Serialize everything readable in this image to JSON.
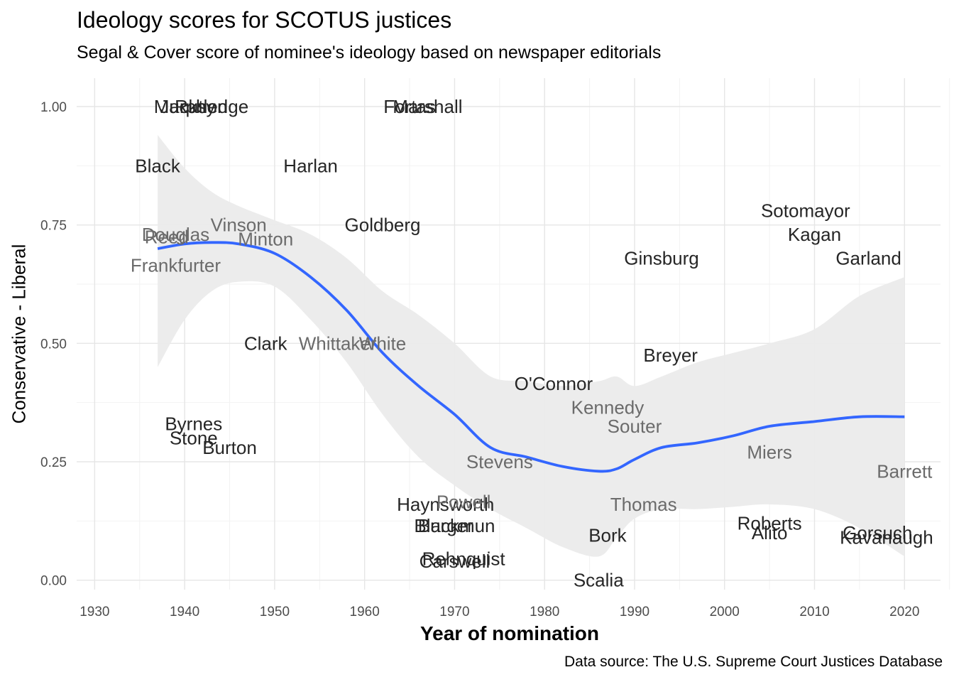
{
  "chart_data": {
    "type": "scatter",
    "title": "Ideology scores for SCOTUS justices",
    "subtitle": "Segal & Cover score of nominee's ideology based on newspaper editorials",
    "caption": "Data source: The U.S. Supreme Court Justices Database",
    "xlabel": "Year of nomination",
    "ylabel": "Conservative - Liberal",
    "xlim": [
      1928,
      2024
    ],
    "ylim": [
      -0.02,
      1.06
    ],
    "x_ticks": [
      1930,
      1940,
      1950,
      1960,
      1970,
      1980,
      1990,
      2000,
      2010,
      2020
    ],
    "y_ticks": [
      0.0,
      0.25,
      0.5,
      0.75,
      1.0
    ],
    "y_tick_labels": [
      "0.00",
      "0.25",
      "0.50",
      "0.75",
      "1.00"
    ],
    "grid": true,
    "points": [
      {
        "name": "Black",
        "x": 1937,
        "y": 0.875,
        "in_band": false
      },
      {
        "name": "Reed",
        "x": 1938,
        "y": 0.725,
        "in_band": true
      },
      {
        "name": "Frankfurter",
        "x": 1939,
        "y": 0.665,
        "in_band": true
      },
      {
        "name": "Douglas",
        "x": 1939,
        "y": 0.73,
        "in_band": true
      },
      {
        "name": "Murphy",
        "x": 1940,
        "y": 1.0,
        "in_band": false
      },
      {
        "name": "Stone",
        "x": 1941,
        "y": 0.3,
        "in_band": false
      },
      {
        "name": "Byrnes",
        "x": 1941,
        "y": 0.33,
        "in_band": false
      },
      {
        "name": "Jackson",
        "x": 1941,
        "y": 1.0,
        "in_band": false
      },
      {
        "name": "Rutledge",
        "x": 1943,
        "y": 1.0,
        "in_band": false
      },
      {
        "name": "Burton",
        "x": 1945,
        "y": 0.28,
        "in_band": false
      },
      {
        "name": "Vinson",
        "x": 1946,
        "y": 0.75,
        "in_band": true
      },
      {
        "name": "Clark",
        "x": 1949,
        "y": 0.5,
        "in_band": false
      },
      {
        "name": "Minton",
        "x": 1949,
        "y": 0.72,
        "in_band": true
      },
      {
        "name": "Harlan",
        "x": 1954,
        "y": 0.875,
        "in_band": false
      },
      {
        "name": "White",
        "x": 1962,
        "y": 0.5,
        "in_band": true
      },
      {
        "name": "Whittaker",
        "x": 1957,
        "y": 0.5,
        "in_band": true
      },
      {
        "name": "Goldberg",
        "x": 1962,
        "y": 0.75,
        "in_band": false
      },
      {
        "name": "Fortas",
        "x": 1965,
        "y": 1.0,
        "in_band": false
      },
      {
        "name": "Marshall",
        "x": 1967,
        "y": 1.0,
        "in_band": false
      },
      {
        "name": "Burger",
        "x": 1969,
        "y": 0.115,
        "in_band": false
      },
      {
        "name": "Haynsworth",
        "x": 1969,
        "y": 0.16,
        "in_band": false
      },
      {
        "name": "Carswell",
        "x": 1970,
        "y": 0.04,
        "in_band": false
      },
      {
        "name": "Blackmun",
        "x": 1970,
        "y": 0.115,
        "in_band": false
      },
      {
        "name": "Powell",
        "x": 1971,
        "y": 0.165,
        "in_band": true
      },
      {
        "name": "Rehnquist",
        "x": 1971,
        "y": 0.045,
        "in_band": false
      },
      {
        "name": "Stevens",
        "x": 1975,
        "y": 0.25,
        "in_band": true
      },
      {
        "name": "O'Connor",
        "x": 1981,
        "y": 0.415,
        "in_band": false
      },
      {
        "name": "Scalia",
        "x": 1986,
        "y": 0.0,
        "in_band": false
      },
      {
        "name": "Bork",
        "x": 1987,
        "y": 0.095,
        "in_band": false
      },
      {
        "name": "Kennedy",
        "x": 1987,
        "y": 0.365,
        "in_band": true
      },
      {
        "name": "Souter",
        "x": 1990,
        "y": 0.325,
        "in_band": true
      },
      {
        "name": "Thomas",
        "x": 1991,
        "y": 0.16,
        "in_band": true
      },
      {
        "name": "Ginsburg",
        "x": 1993,
        "y": 0.68,
        "in_band": false
      },
      {
        "name": "Breyer",
        "x": 1994,
        "y": 0.475,
        "in_band": false
      },
      {
        "name": "Roberts",
        "x": 2005,
        "y": 0.12,
        "in_band": false
      },
      {
        "name": "Alito",
        "x": 2005,
        "y": 0.1,
        "in_band": false
      },
      {
        "name": "Miers",
        "x": 2005,
        "y": 0.27,
        "in_band": true
      },
      {
        "name": "Sotomayor",
        "x": 2009,
        "y": 0.78,
        "in_band": false
      },
      {
        "name": "Kagan",
        "x": 2010,
        "y": 0.73,
        "in_band": false
      },
      {
        "name": "Garland",
        "x": 2016,
        "y": 0.68,
        "in_band": false
      },
      {
        "name": "Gorsuch",
        "x": 2017,
        "y": 0.1,
        "in_band": false
      },
      {
        "name": "Kavanaugh",
        "x": 2018,
        "y": 0.09,
        "in_band": false
      },
      {
        "name": "Barrett",
        "x": 2020,
        "y": 0.23,
        "in_band": true
      }
    ],
    "smooth_fit": {
      "method": "loess",
      "color": "#3366ff",
      "band_color": "#ebebeb",
      "x": [
        1937,
        1940,
        1943,
        1946,
        1950,
        1954,
        1958,
        1962,
        1966,
        1970,
        1974,
        1978,
        1982,
        1986,
        1988,
        1990,
        1993,
        1997,
        2001,
        2005,
        2010,
        2015,
        2020
      ],
      "y": [
        0.7,
        0.71,
        0.713,
        0.71,
        0.69,
        0.64,
        0.57,
        0.48,
        0.41,
        0.35,
        0.28,
        0.26,
        0.24,
        0.23,
        0.235,
        0.255,
        0.28,
        0.29,
        0.305,
        0.325,
        0.335,
        0.345,
        0.345
      ],
      "lower": [
        0.45,
        0.55,
        0.61,
        0.63,
        0.62,
        0.55,
        0.46,
        0.35,
        0.26,
        0.2,
        0.15,
        0.11,
        0.07,
        0.05,
        0.09,
        0.13,
        0.15,
        0.15,
        0.155,
        0.16,
        0.15,
        0.11,
        0.05
      ],
      "upper": [
        0.94,
        0.87,
        0.82,
        0.79,
        0.76,
        0.73,
        0.68,
        0.61,
        0.56,
        0.5,
        0.43,
        0.42,
        0.41,
        0.42,
        0.43,
        0.41,
        0.43,
        0.46,
        0.48,
        0.5,
        0.53,
        0.6,
        0.64
      ]
    }
  }
}
